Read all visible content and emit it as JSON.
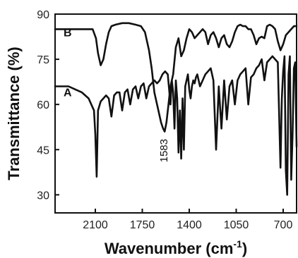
{
  "chart_data": {
    "type": "line",
    "title": "",
    "xlabel": "Wavenumber (cm",
    "xlabel_sup": "-1",
    "xlabel_close": ")",
    "ylabel": "Transmittance (%)",
    "xlim": [
      2400,
      600
    ],
    "ylim": [
      24,
      90
    ],
    "x_reversed": true,
    "xticks": [
      {
        "value": 2100,
        "label": "2100"
      },
      {
        "value": 1750,
        "label": "1750"
      },
      {
        "value": 1400,
        "label": "1400"
      },
      {
        "value": 1050,
        "label": "1050"
      },
      {
        "value": 700,
        "label": "700"
      }
    ],
    "yticks": [
      {
        "value": 30,
        "label": "30"
      },
      {
        "value": 45,
        "label": "45"
      },
      {
        "value": 60,
        "label": "60"
      },
      {
        "value": 75,
        "label": "75"
      },
      {
        "value": 90,
        "label": "90"
      }
    ],
    "grid": false,
    "annotations": [
      {
        "text": "1583",
        "x": 1583,
        "y": 52,
        "rotation": -90
      }
    ],
    "series": [
      {
        "name": "B",
        "x": [
          2400,
          2300,
          2200,
          2150,
          2120,
          2095,
          2080,
          2060,
          2040,
          2020,
          2000,
          1980,
          1950,
          1900,
          1850,
          1800,
          1760,
          1730,
          1700,
          1680,
          1660,
          1630,
          1610,
          1595,
          1583,
          1570,
          1555,
          1540,
          1520,
          1500,
          1480,
          1460,
          1440,
          1420,
          1400,
          1380,
          1360,
          1340,
          1320,
          1300,
          1280,
          1260,
          1240,
          1220,
          1200,
          1180,
          1160,
          1140,
          1120,
          1100,
          1080,
          1060,
          1040,
          1020,
          1000,
          980,
          960,
          940,
          920,
          900,
          880,
          860,
          840,
          820,
          800,
          780,
          760,
          740,
          720,
          700,
          680,
          660,
          640,
          620,
          600
        ],
        "y": [
          85,
          85,
          85,
          85,
          85,
          82,
          77,
          73,
          75,
          80,
          84,
          86,
          86.5,
          87,
          87,
          86.5,
          86,
          84,
          78,
          72,
          64,
          58,
          54,
          52,
          51,
          54,
          60,
          66,
          70,
          79,
          82,
          76,
          78,
          82,
          85,
          84,
          82,
          83,
          84,
          85,
          84,
          80,
          83,
          84,
          82,
          79,
          82,
          83,
          80,
          79,
          81,
          84,
          86,
          86.5,
          86,
          86,
          85,
          85,
          83,
          80,
          82,
          82.5,
          82,
          86,
          86.5,
          86,
          85,
          81,
          78,
          80,
          83,
          84,
          85,
          86,
          86
        ]
      },
      {
        "name": "A",
        "x": [
          2400,
          2350,
          2300,
          2250,
          2200,
          2150,
          2130,
          2110,
          2100,
          2090,
          2080,
          2060,
          2040,
          2020,
          2000,
          1980,
          1960,
          1940,
          1920,
          1900,
          1880,
          1860,
          1840,
          1820,
          1800,
          1780,
          1760,
          1740,
          1720,
          1700,
          1680,
          1660,
          1640,
          1620,
          1600,
          1580,
          1560,
          1540,
          1530,
          1520,
          1510,
          1500,
          1490,
          1480,
          1470,
          1460,
          1450,
          1440,
          1430,
          1420,
          1410,
          1400,
          1390,
          1380,
          1370,
          1360,
          1350,
          1340,
          1320,
          1300,
          1280,
          1260,
          1240,
          1220,
          1200,
          1180,
          1160,
          1140,
          1120,
          1100,
          1080,
          1060,
          1040,
          1020,
          1000,
          980,
          960,
          940,
          920,
          900,
          880,
          860,
          840,
          820,
          800,
          780,
          760,
          740,
          720,
          710,
          700,
          690,
          680,
          670,
          660,
          650,
          640,
          630,
          620,
          610,
          600
        ],
        "y": [
          66,
          66,
          66,
          65,
          64,
          62,
          60,
          58,
          50,
          36,
          58,
          61,
          62,
          63,
          62,
          56,
          63,
          64,
          64,
          58,
          64,
          65,
          60,
          65,
          66,
          62,
          66,
          67,
          62,
          66,
          67,
          68,
          67,
          68,
          70,
          71,
          70,
          60,
          68,
          64,
          52,
          68,
          62,
          44,
          58,
          42,
          62,
          45,
          66,
          68,
          70,
          65,
          62,
          66,
          68,
          67,
          69,
          70,
          66,
          68,
          70,
          71,
          72,
          68,
          45,
          66,
          52,
          68,
          55,
          66,
          68,
          60,
          68,
          70,
          71,
          72,
          60,
          69,
          70,
          72,
          73,
          75,
          68,
          74,
          75,
          76,
          75,
          74,
          39,
          62,
          71,
          76,
          38,
          30,
          70,
          76,
          35,
          50,
          72,
          74,
          46
        ]
      }
    ]
  }
}
